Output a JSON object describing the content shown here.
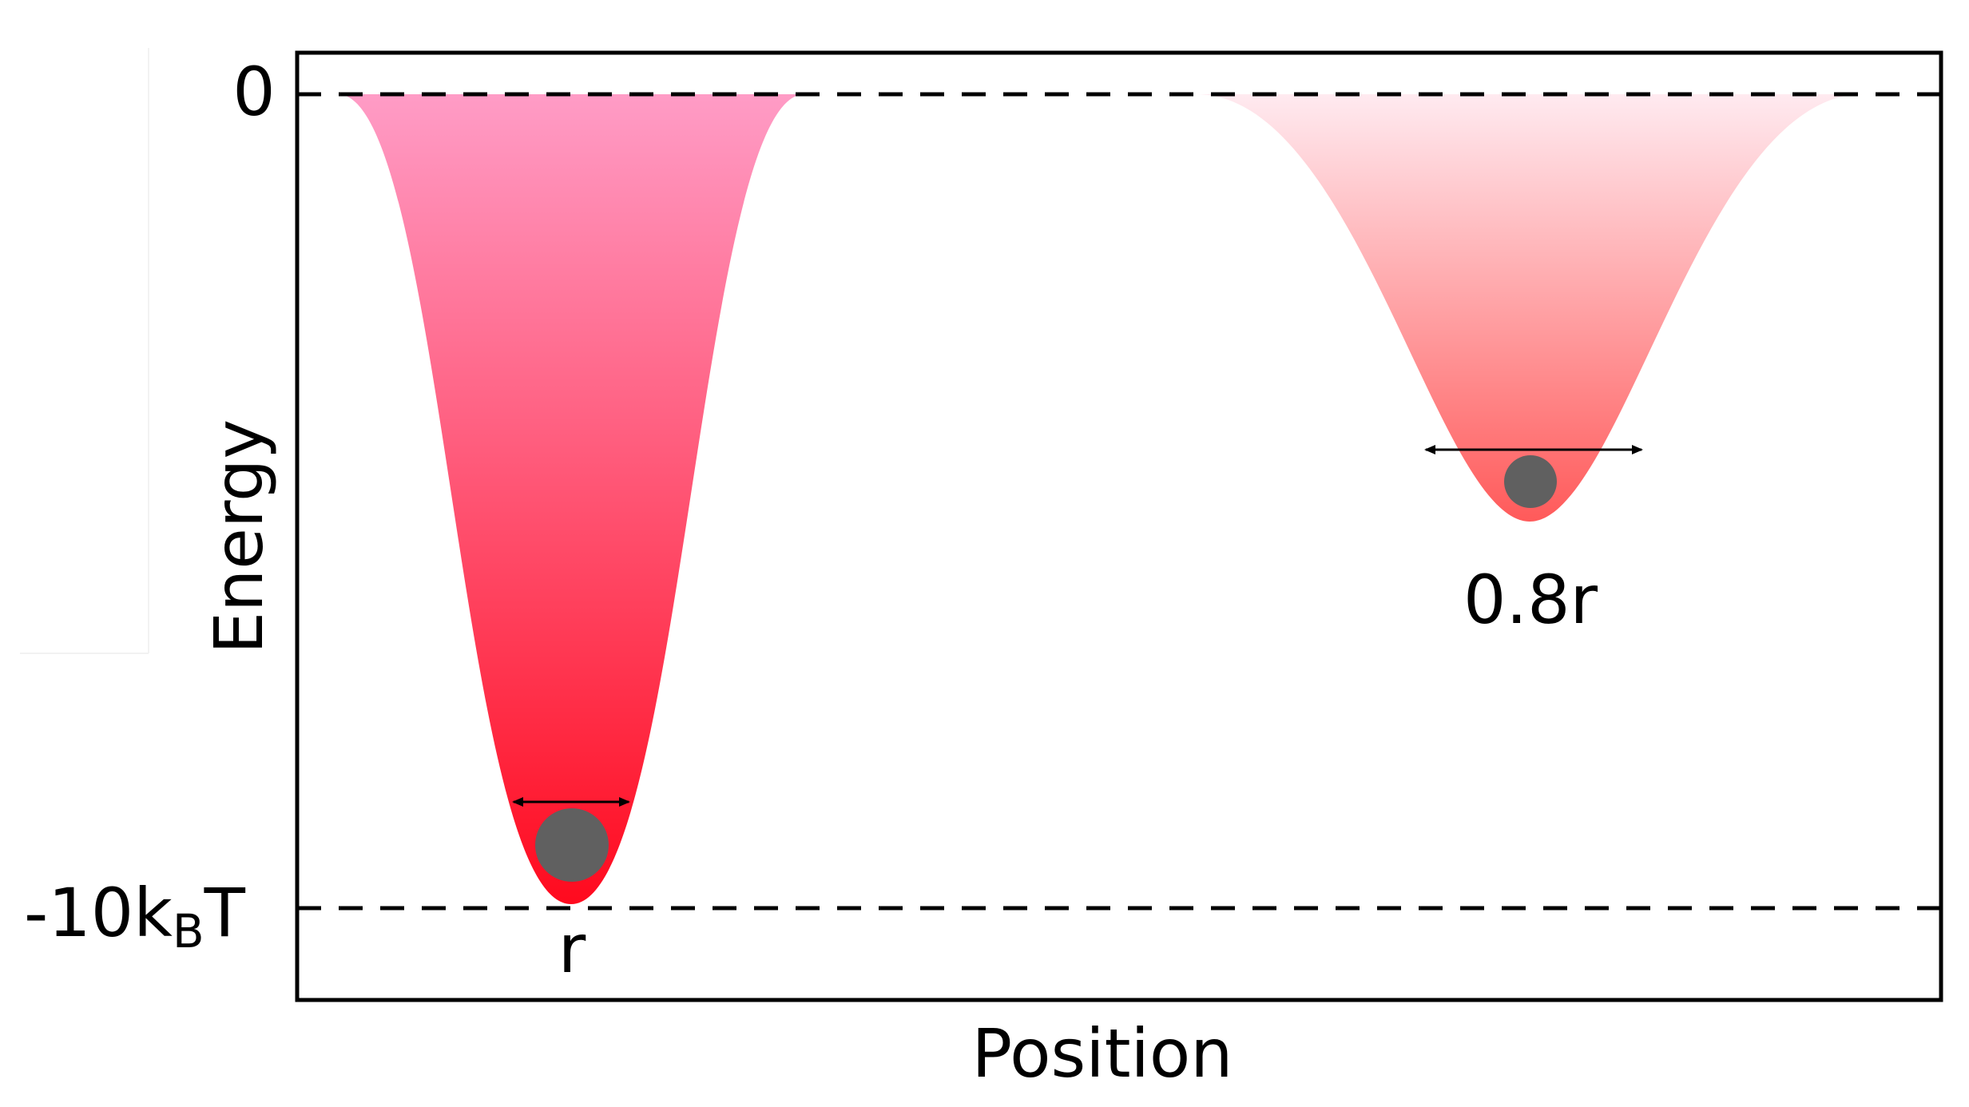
{
  "figure": {
    "y_axis_label": "Energy",
    "x_axis_label": "Position",
    "y_ticks": {
      "top": "0",
      "bottom_main": "-10k",
      "bottom_sub": "B",
      "bottom_tail": "T"
    },
    "wells": [
      {
        "label": "r",
        "gradient_top": "#ff9cc6",
        "gradient_bottom": "#ff0a1e"
      },
      {
        "label": "0.8r",
        "gradient_top": "#ffeaf0",
        "gradient_bottom": "#ff5a5a"
      }
    ],
    "particle_color": "#606060",
    "frame_color": "#000000"
  }
}
